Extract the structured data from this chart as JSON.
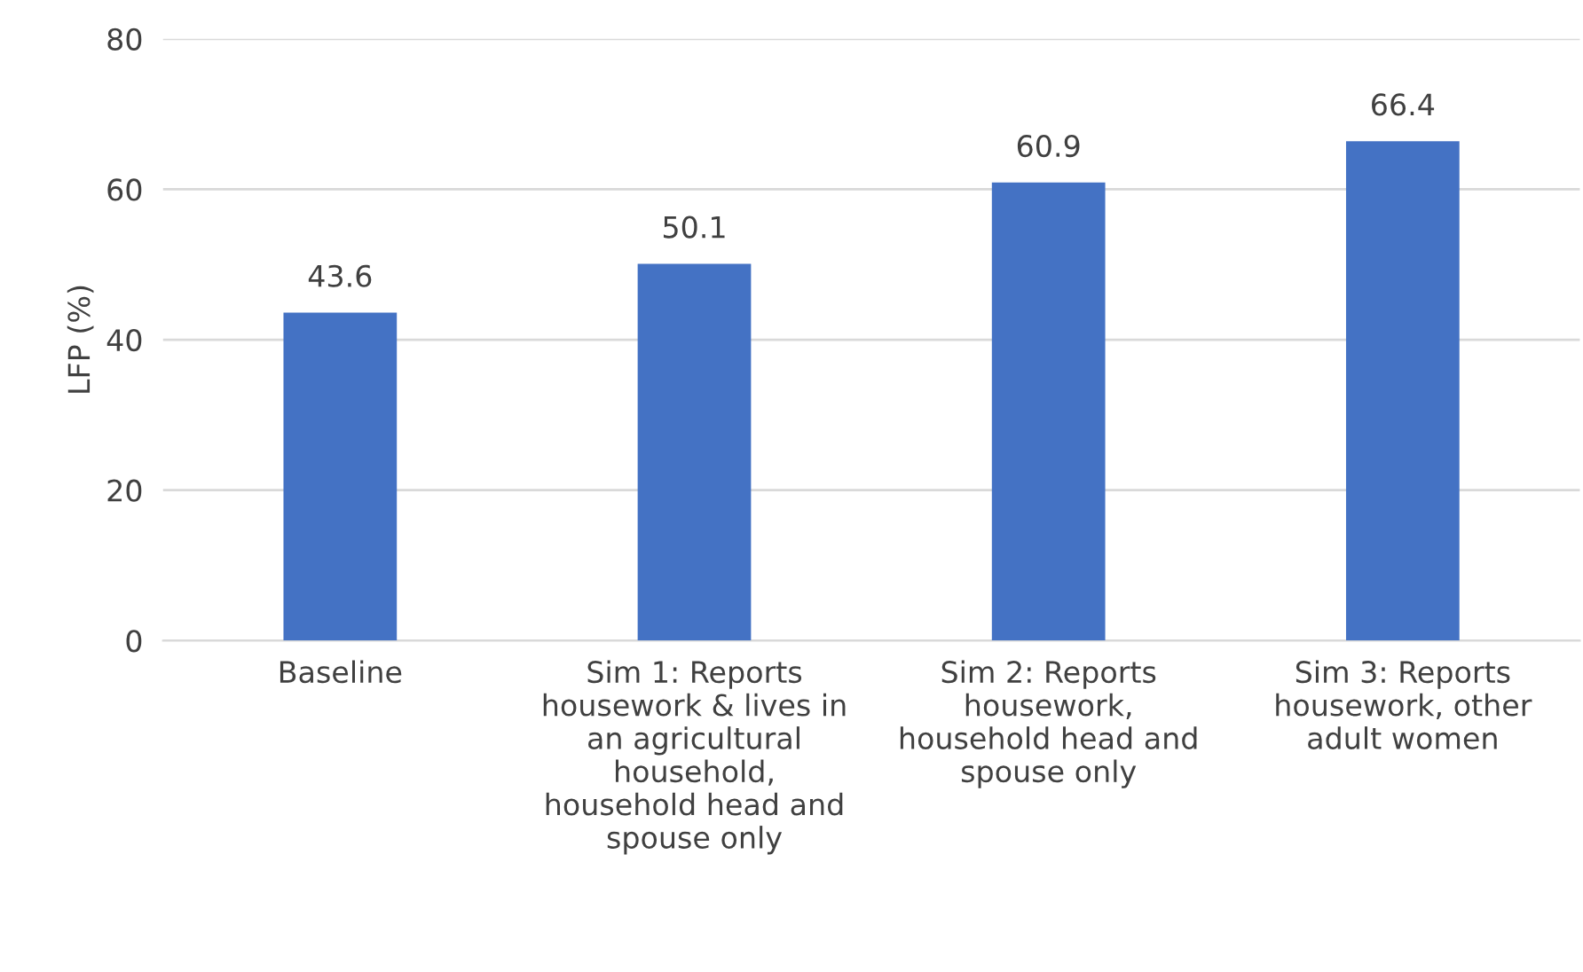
{
  "chart_data": {
    "type": "bar",
    "ylabel": "LFP (%)",
    "categories": [
      "Baseline",
      "Sim 1: Reports\nhousework & lives in\nan agricultural\nhousehold,\nhousehold head and\nspouse only",
      "Sim 2: Reports\nhousework,\nhousehold head and\nspouse only",
      "Sim 3: Reports\nhousework, other\nadult women"
    ],
    "values": [
      43.6,
      50.1,
      60.9,
      66.4
    ],
    "color": "#4472c4",
    "ylim": [
      0,
      80
    ],
    "yticks": [
      0,
      20,
      40,
      60,
      80
    ],
    "grid": "y",
    "data_labels": true
  }
}
